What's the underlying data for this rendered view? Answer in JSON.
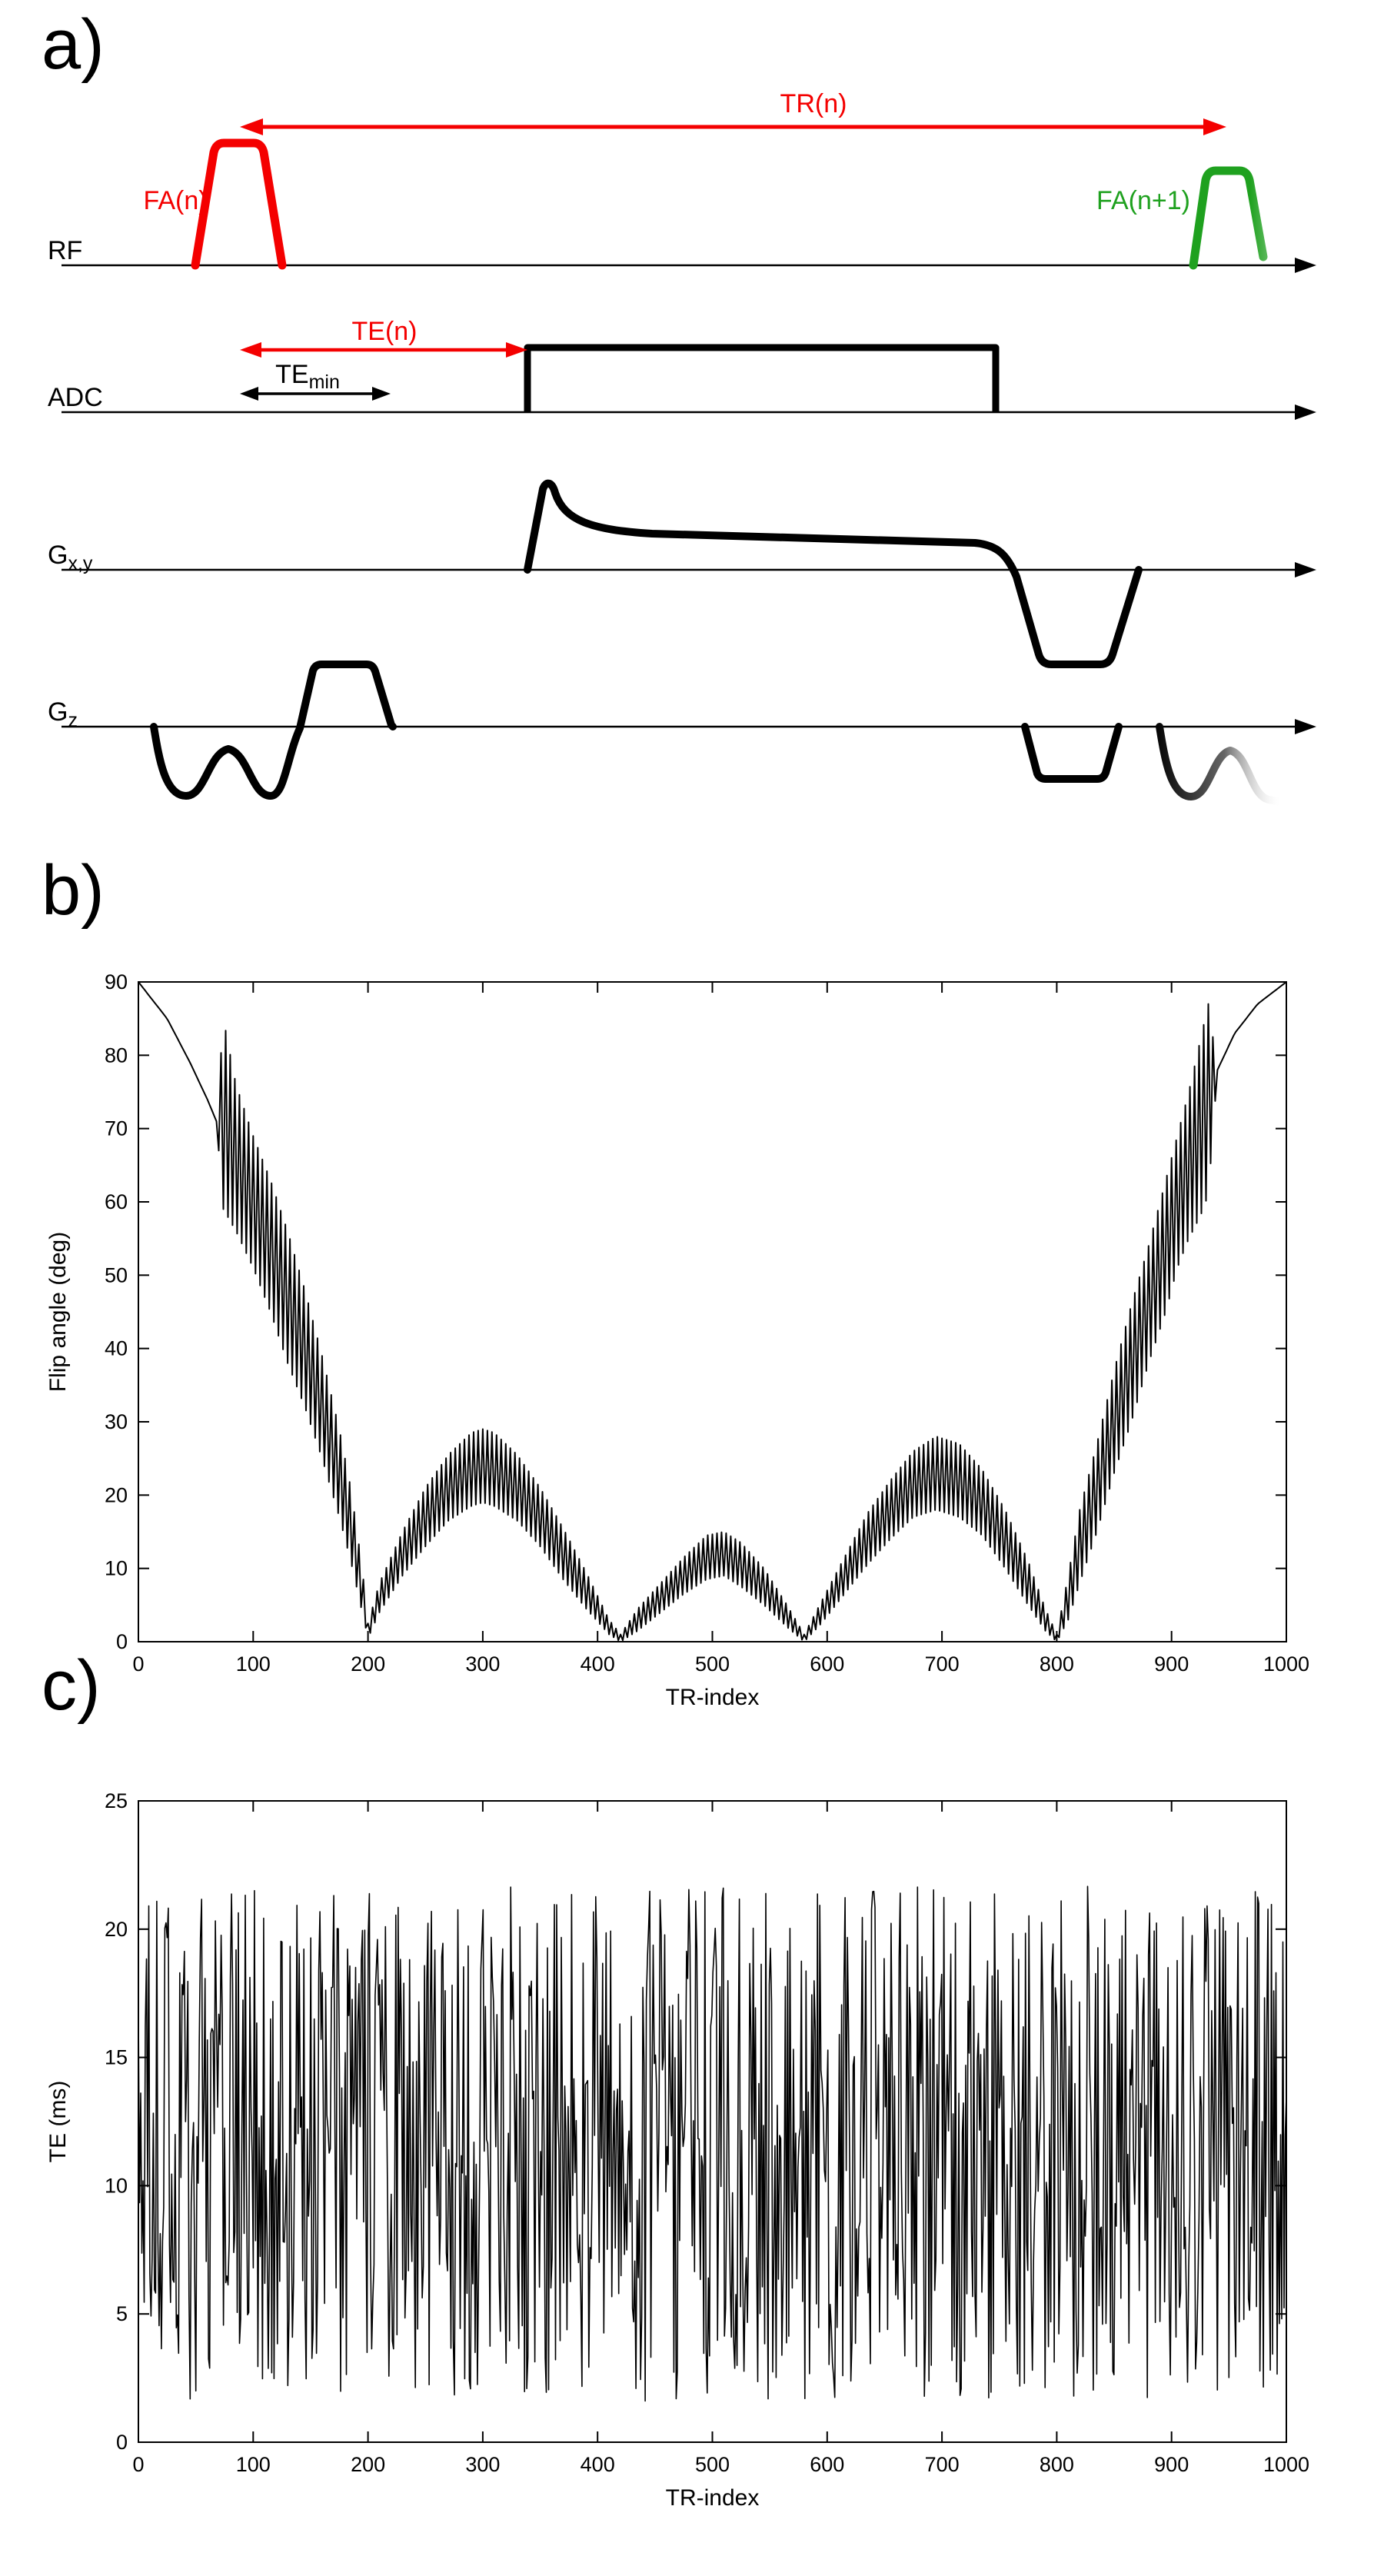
{
  "figure": {
    "background": "#ffffff"
  },
  "panel_a": {
    "label": "a)",
    "rows": {
      "rf": "RF",
      "adc": "ADC",
      "gxy_main": "G",
      "gxy_sub": "x,y",
      "gz_main": "G",
      "gz_sub": "z"
    },
    "annotations": {
      "tr": "TR(n)",
      "fa_current": "FA(n)",
      "fa_next": "FA(n+1)",
      "te": "TE(n)",
      "te_min_main": "TE",
      "te_min_sub": "min"
    },
    "colors": {
      "pulse_red": "#f40000",
      "pulse_green": "#1fa11f",
      "line_black": "#000000"
    }
  },
  "panel_b": {
    "label": "b)"
  },
  "panel_c": {
    "label": "c)"
  },
  "chart_data": [
    {
      "id": "flip-angle-train",
      "panel": "b",
      "type": "line",
      "title": "",
      "xlabel": "TR-index",
      "ylabel": "Flip angle (deg)",
      "xlim": [
        0,
        1000
      ],
      "ylim": [
        0,
        90
      ],
      "xticks": [
        0,
        100,
        200,
        300,
        400,
        500,
        600,
        700,
        800,
        900,
        1000
      ],
      "yticks": [
        0,
        10,
        20,
        30,
        40,
        50,
        60,
        70,
        80,
        90
      ],
      "grid": false,
      "box": true,
      "legend": null,
      "line_color": "#000000",
      "description": "Variable flip-angle train over 1000 TRs: starts at 90 deg, decays to 0 at TR 200 with rapid two-TR oscillation beginning near TR 70, arches peaking ~24-26 deg near TR 300, ~13 deg near TR 510 and ~24-26 deg near TR 700 with nulls at TR 420, 580 and 800, then climbs back to 90 deg at TR 1000 (smooth above ~TR 940)",
      "step": 2,
      "envelope": {
        "x": [
          0,
          25,
          45,
          60,
          68,
          74,
          85,
          100,
          115,
          130,
          145,
          160,
          175,
          185,
          195,
          200,
          210,
          230,
          250,
          270,
          290,
          300,
          310,
          330,
          350,
          370,
          390,
          410,
          420,
          435,
          455,
          475,
          495,
          510,
          525,
          545,
          565,
          580,
          595,
          615,
          635,
          655,
          675,
          695,
          715,
          735,
          755,
          775,
          790,
          800,
          810,
          820,
          835,
          850,
          865,
          880,
          895,
          905,
          915,
          925,
          932,
          940,
          955,
          975,
          1000
        ],
        "mean": [
          90,
          85,
          79,
          74,
          71,
          72,
          66,
          60,
          54,
          47,
          40,
          32,
          23,
          16,
          7,
          1.5,
          6,
          12,
          17,
          21,
          23.5,
          24,
          23.5,
          21,
          17,
          12,
          7,
          2,
          0.5,
          3,
          6,
          9,
          11.5,
          12,
          10.5,
          7.5,
          3.5,
          0.5,
          4,
          9,
          14,
          18,
          21.5,
          23,
          22,
          19,
          14,
          8,
          3,
          0.5,
          6,
          13,
          21,
          30,
          38,
          46,
          54,
          60,
          65,
          70,
          74,
          78,
          83,
          87,
          90
        ],
        "amp": [
          0,
          0,
          0,
          0,
          0,
          13,
          10,
          9,
          9,
          9,
          8,
          7,
          6,
          5,
          3,
          1,
          2,
          3,
          4,
          4.5,
          5,
          5,
          5,
          4.5,
          4,
          3.5,
          2.5,
          1,
          0.5,
          1.5,
          2,
          2.5,
          3,
          3,
          3,
          2.5,
          1.5,
          0.5,
          1.5,
          2.5,
          3.5,
          4,
          4.5,
          5,
          5,
          4.5,
          4,
          3,
          1.5,
          0.5,
          3,
          5,
          6,
          7,
          8,
          8,
          9,
          9,
          10,
          12,
          13,
          0,
          0,
          0,
          0
        ]
      }
    },
    {
      "id": "te-shuffle",
      "panel": "c",
      "type": "line",
      "title": "",
      "xlabel": "TR-index",
      "ylabel": "TE (ms)",
      "xlim": [
        0,
        1000
      ],
      "ylim": [
        0,
        25
      ],
      "xticks": [
        0,
        100,
        200,
        300,
        400,
        500,
        600,
        700,
        800,
        900,
        1000
      ],
      "yticks": [
        0,
        5,
        10,
        15,
        20,
        25
      ],
      "grid": false,
      "box": true,
      "legend": null,
      "line_color": "#000000",
      "description": "Pseudo-randomly shuffled echo times over 1000 TRs: values distributed uniformly between about 1.5 ms and 21.7 ms with no visible trend",
      "noise": {
        "n": 1000,
        "min": 1.6,
        "max": 21.7,
        "seed": 20
      }
    }
  ]
}
